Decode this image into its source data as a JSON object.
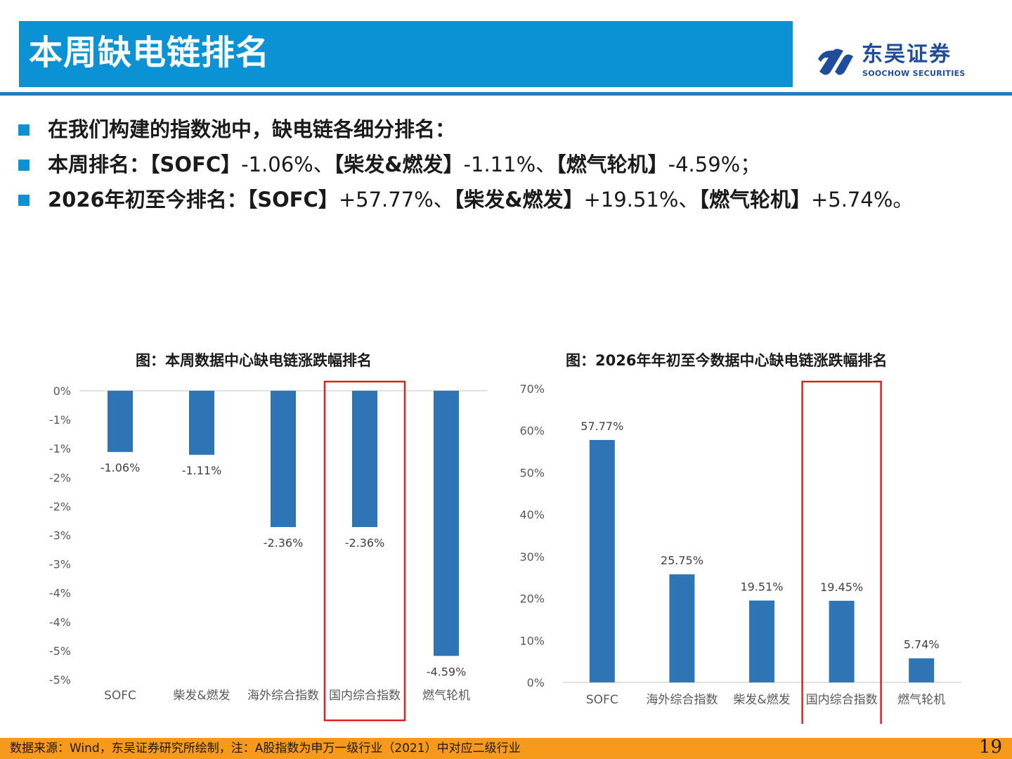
{
  "header": {
    "title": "本周缺电链排名",
    "logo_cn": "东吴证券",
    "logo_en": "SOOCHOW SECURITIES"
  },
  "bullets": [
    {
      "parts": [
        {
          "text": "在我们构建的指数池中，缺电链各细分排名：",
          "bold": true
        }
      ]
    },
    {
      "parts": [
        {
          "text": "本周排名：【SOFC】",
          "bold": true
        },
        {
          "text": "-1.06%、",
          "bold": false
        },
        {
          "text": "【柴发&燃发】",
          "bold": true
        },
        {
          "text": "-1.11%、",
          "bold": false
        },
        {
          "text": "【燃气轮机】",
          "bold": true
        },
        {
          "text": "-4.59%；",
          "bold": false
        }
      ]
    },
    {
      "parts": [
        {
          "text": "2026年初至今排名：【SOFC】",
          "bold": true
        },
        {
          "text": "+57.77%、",
          "bold": false
        },
        {
          "text": "【柴发&燃发】",
          "bold": true
        },
        {
          "text": "+19.51%、",
          "bold": false
        },
        {
          "text": "【燃气轮机】",
          "bold": true
        },
        {
          "text": "+5.74%。",
          "bold": false
        }
      ]
    }
  ],
  "chart_data": [
    {
      "type": "bar",
      "title": "图：本周数据中心缺电链涨跌幅排名",
      "categories": [
        "SOFC",
        "柴发&燃发",
        "海外综合指数",
        "国内综合指数",
        "燃气轮机"
      ],
      "values": [
        -1.06,
        -1.11,
        -2.36,
        -2.36,
        -4.59
      ],
      "data_labels": [
        "-1.06%",
        "-1.11%",
        "-2.36%",
        "-2.36%",
        "-4.59%"
      ],
      "y_tick_labels": [
        "0%",
        "-1%",
        "-1%",
        "-2%",
        "-2%",
        "-3%",
        "-3%",
        "-4%",
        "-4%",
        "-5%",
        "-5%"
      ],
      "ylim": [
        -5,
        0
      ],
      "highlight_category": "国内综合指数",
      "bar_color": "#2e75b6",
      "highlight_color": "#e02020",
      "grid": false
    },
    {
      "type": "bar",
      "title": "图：2026年年初至今数据中心缺电链涨跌幅排名",
      "categories": [
        "SOFC",
        "海外综合指数",
        "柴发&燃发",
        "国内综合指数",
        "燃气轮机"
      ],
      "values": [
        57.77,
        25.75,
        19.51,
        19.45,
        5.74
      ],
      "data_labels": [
        "57.77%",
        "25.75%",
        "19.51%",
        "19.45%",
        "5.74%"
      ],
      "y_tick_labels": [
        "0%",
        "10%",
        "20%",
        "30%",
        "40%",
        "50%",
        "60%",
        "70%"
      ],
      "ylim": [
        0,
        70
      ],
      "highlight_category": "国内综合指数",
      "bar_color": "#2e75b6",
      "highlight_color": "#e02020",
      "grid": false
    }
  ],
  "footer": {
    "source": "数据来源：Wind，东吴证券研究所绘制，注：A股指数为申万一级行业（2021）中对应二级行业",
    "page": "19"
  },
  "colors": {
    "accent": "#0b92d4",
    "rule": "#1f7fc2",
    "footer": "#f79a1b",
    "logo": "#1f4d99"
  }
}
